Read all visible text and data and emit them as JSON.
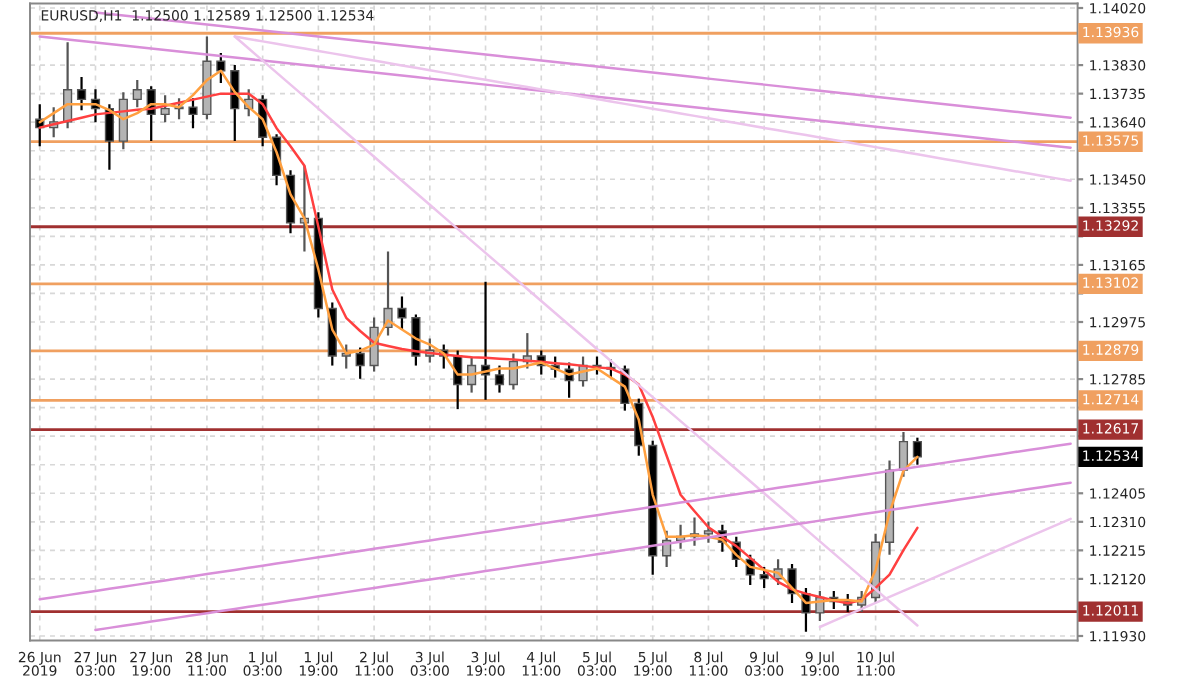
{
  "chart_data": {
    "type": "candlestick",
    "title": "EURUSD,H1  1.12500 1.12589 1.12500 1.12534",
    "categories": [
      "26 Jun 2019",
      null,
      null,
      null,
      "27 Jun 03:00",
      null,
      null,
      null,
      "27 Jun 19:00",
      null,
      null,
      null,
      "28 Jun 11:00",
      null,
      null,
      null,
      "1 Jul 03:00",
      null,
      null,
      null,
      "1 Jul 19:00",
      null,
      null,
      null,
      "2 Jul 11:00",
      null,
      null,
      null,
      "3 Jul 03:00",
      null,
      null,
      null,
      "3 Jul 19:00",
      null,
      null,
      null,
      "4 Jul 11:00",
      null,
      null,
      null,
      "5 Jul 03:00",
      null,
      null,
      null,
      "5 Jul 19:00",
      null,
      null,
      null,
      "8 Jul 11:00",
      null,
      null,
      null,
      "9 Jul 03:00",
      null,
      null,
      null,
      "9 Jul 19:00",
      null,
      null,
      null,
      "10 Jul 11:00",
      null,
      null,
      null,
      null,
      null,
      null,
      null,
      null,
      null,
      null,
      null,
      null,
      null,
      null
    ],
    "ohlc": [
      [
        1.1365,
        1.137,
        1.1356,
        1.13622
      ],
      [
        1.13622,
        1.1369,
        1.1359,
        1.13641
      ],
      [
        1.13641,
        1.13906,
        1.1362,
        1.13748
      ],
      [
        1.13748,
        1.1379,
        1.1368,
        1.13716
      ],
      [
        1.13716,
        1.1375,
        1.1364,
        1.13685
      ],
      [
        1.13685,
        1.137,
        1.13482,
        1.13577
      ],
      [
        1.13577,
        1.1374,
        1.1355,
        1.13716
      ],
      [
        1.13716,
        1.1378,
        1.1369,
        1.13748
      ],
      [
        1.13748,
        1.1376,
        1.13577,
        1.13666
      ],
      [
        1.13666,
        1.1373,
        1.1364,
        1.13685
      ],
      [
        1.13685,
        1.1372,
        1.1365,
        1.1369
      ],
      [
        1.1369,
        1.1372,
        1.1362,
        1.13666
      ],
      [
        1.13666,
        1.13925,
        1.1365,
        1.13843
      ],
      [
        1.13843,
        1.1387,
        1.1377,
        1.13811
      ],
      [
        1.13811,
        1.1383,
        1.13577,
        1.13685
      ],
      [
        1.13685,
        1.1375,
        1.1366,
        1.13716
      ],
      [
        1.13716,
        1.1373,
        1.1356,
        1.1359
      ],
      [
        1.1359,
        1.136,
        1.1343,
        1.13463
      ],
      [
        1.13463,
        1.1348,
        1.1327,
        1.13305
      ],
      [
        1.13305,
        1.13495,
        1.1321,
        1.1332
      ],
      [
        1.1332,
        1.1334,
        1.1299,
        1.1302
      ],
      [
        1.1302,
        1.1304,
        1.1283,
        1.12862
      ],
      [
        1.12862,
        1.129,
        1.1282,
        1.1287
      ],
      [
        1.1287,
        1.1289,
        1.12786,
        1.1283
      ],
      [
        1.1283,
        1.1299,
        1.1281,
        1.12957
      ],
      [
        1.12957,
        1.1321,
        1.1293,
        1.1302
      ],
      [
        1.1302,
        1.1306,
        1.1295,
        1.12989
      ],
      [
        1.12989,
        1.13,
        1.1283,
        1.12862
      ],
      [
        1.12862,
        1.1292,
        1.1284,
        1.12881
      ],
      [
        1.12881,
        1.129,
        1.1282,
        1.12862
      ],
      [
        1.12862,
        1.1288,
        1.12685,
        1.12767
      ],
      [
        1.12767,
        1.1286,
        1.1274,
        1.1283
      ],
      [
        1.1283,
        1.13109,
        1.12716,
        1.12799
      ],
      [
        1.12799,
        1.1283,
        1.1274,
        1.12767
      ],
      [
        1.12767,
        1.1287,
        1.1275,
        1.12843
      ],
      [
        1.12843,
        1.12938,
        1.1282,
        1.12862
      ],
      [
        1.12862,
        1.1288,
        1.128,
        1.1283
      ],
      [
        1.1283,
        1.1286,
        1.1279,
        1.12818
      ],
      [
        1.12818,
        1.1284,
        1.12723,
        1.1278
      ],
      [
        1.1278,
        1.1286,
        1.1276,
        1.1283
      ],
      [
        1.1283,
        1.1286,
        1.128,
        1.12824
      ],
      [
        1.12824,
        1.1285,
        1.1279,
        1.12818
      ],
      [
        1.12818,
        1.1283,
        1.1268,
        1.12704
      ],
      [
        1.12704,
        1.1272,
        1.1253,
        1.12564
      ],
      [
        1.12564,
        1.1258,
        1.12134,
        1.12197
      ],
      [
        1.12197,
        1.1228,
        1.1216,
        1.12248
      ],
      [
        1.12248,
        1.123,
        1.1222,
        1.12261
      ],
      [
        1.12261,
        1.12324,
        1.1223,
        1.1227
      ],
      [
        1.1227,
        1.12311,
        1.1224,
        1.1228
      ],
      [
        1.1228,
        1.123,
        1.1221,
        1.12242
      ],
      [
        1.12242,
        1.1226,
        1.1216,
        1.12185
      ],
      [
        1.12185,
        1.122,
        1.121,
        1.12134
      ],
      [
        1.12134,
        1.1216,
        1.1209,
        1.12121
      ],
      [
        1.12121,
        1.12185,
        1.121,
        1.12153
      ],
      [
        1.12153,
        1.1217,
        1.1204,
        1.12071
      ],
      [
        1.12071,
        1.1209,
        1.11944,
        1.12007
      ],
      [
        1.12007,
        1.1208,
        1.1198,
        1.12058
      ],
      [
        1.12058,
        1.1208,
        1.1202,
        1.12045
      ],
      [
        1.12045,
        1.1207,
        1.1201,
        1.12033
      ],
      [
        1.12033,
        1.1208,
        1.1201,
        1.12058
      ],
      [
        1.12058,
        1.1227,
        1.1204,
        1.12242
      ],
      [
        1.12242,
        1.12514,
        1.122,
        1.12482
      ],
      [
        1.12482,
        1.12609,
        1.1246,
        1.12577
      ],
      [
        1.12577,
        1.1259,
        1.125,
        1.12526
      ],
      null,
      null,
      null,
      null,
      null,
      null,
      null,
      null,
      null,
      null,
      null
    ],
    "colors": [
      "#000000",
      "#b4b4b4",
      "#b4b4b4",
      "#000000",
      "#000000",
      "#000000",
      "#b4b4b4",
      "#b4b4b4",
      "#000000",
      "#b4b4b4",
      "#b4b4b4",
      "#000000",
      "#b4b4b4",
      "#000000",
      "#000000",
      "#b4b4b4",
      "#000000",
      "#000000",
      "#000000",
      "#b4b4b4",
      "#000000",
      "#000000",
      "#b4b4b4",
      "#000000",
      "#b4b4b4",
      "#b4b4b4",
      "#000000",
      "#000000",
      "#b4b4b4",
      "#000000",
      "#000000",
      "#b4b4b4",
      "#000000",
      "#000000",
      "#b4b4b4",
      "#b4b4b4",
      "#000000",
      "#000000",
      "#000000",
      "#b4b4b4",
      "#000000",
      "#000000",
      "#000000",
      "#000000",
      "#000000",
      "#b4b4b4",
      "#b4b4b4",
      "#b4b4b4",
      "#b4b4b4",
      "#000000",
      "#000000",
      "#000000",
      "#000000",
      "#b4b4b4",
      "#000000",
      "#000000",
      "#b4b4b4",
      "#000000",
      "#000000",
      "#b4b4b4",
      "#b4b4b4",
      "#b4b4b4",
      "#b4b4b4",
      "#000000",
      null,
      null,
      null,
      null,
      null,
      null,
      null,
      null,
      null,
      null,
      null
    ],
    "series": [
      {
        "type": "line",
        "color": "#ff4040",
        "values": [
          1.13622,
          1.13633,
          1.13644,
          1.13655,
          1.13666,
          1.13671,
          1.13676,
          1.13681,
          1.13685,
          1.13695,
          1.13705,
          1.13715,
          1.13725,
          1.13735,
          1.13735,
          1.13735,
          1.137,
          1.1362,
          1.1356,
          1.13495,
          1.13292,
          1.13083,
          1.12989,
          1.12945,
          1.12906,
          1.12895,
          1.12885,
          1.12878,
          1.12872,
          1.12867,
          1.12862,
          1.12858,
          1.12856,
          1.12853,
          1.1285,
          1.12846,
          1.12843,
          1.12838,
          1.12834,
          1.12829,
          1.12824,
          1.1282,
          1.128,
          1.12767,
          1.12659,
          1.1253,
          1.124,
          1.12345,
          1.12292,
          1.1226,
          1.12229,
          1.1219,
          1.1215,
          1.1211,
          1.12085,
          1.12071,
          1.1206,
          1.12048,
          1.12039,
          1.1205,
          1.1209,
          1.12134,
          1.12216,
          1.1229,
          null,
          null,
          null,
          null,
          null,
          null,
          null,
          null,
          null,
          null,
          null
        ]
      },
      {
        "type": "line",
        "color": "#ffa040",
        "values": [
          1.1364,
          1.1367,
          1.137,
          1.137,
          1.137,
          1.1368,
          1.1365,
          1.1367,
          1.137,
          1.137,
          1.1369,
          1.1373,
          1.1378,
          1.13811,
          1.1374,
          1.1369,
          1.1365,
          1.1354,
          1.134,
          1.1332,
          1.1315,
          1.1295,
          1.1287,
          1.1288,
          1.129,
          1.1298,
          1.1295,
          1.1292,
          1.129,
          1.1287,
          1.128,
          1.128,
          1.1281,
          1.1282,
          1.1282,
          1.1283,
          1.1284,
          1.1282,
          1.128,
          1.1281,
          1.1282,
          1.1279,
          1.1276,
          1.1265,
          1.124,
          1.1226,
          1.1226,
          1.12265,
          1.1226,
          1.1225,
          1.122,
          1.1216,
          1.1215,
          1.1214,
          1.1209,
          1.1204,
          1.12045,
          1.1205,
          1.1205,
          1.12045,
          1.1215,
          1.1234,
          1.1248,
          1.12526,
          null,
          null,
          null,
          null,
          null,
          null,
          null,
          null,
          null,
          null,
          null
        ]
      },
      {
        "type": "line",
        "color": "#d98fd9",
        "values": [
          null,
          null,
          null,
          null,
          1.14005,
          1.14,
          1.13995,
          1.1399,
          1.13985,
          1.1398,
          1.13975,
          1.1397,
          1.13965,
          1.1396,
          1.13955,
          1.1395,
          1.13945,
          1.1394,
          1.13935,
          1.1393,
          1.13925,
          1.1392,
          1.13915,
          1.1391,
          1.13905,
          1.139,
          1.13895,
          1.1389,
          1.13885,
          1.1388,
          1.13875,
          1.1387,
          1.13865,
          1.1386,
          1.13855,
          1.1385,
          1.13845,
          1.1384,
          1.13835,
          1.1383,
          1.13825,
          1.1382,
          1.13815,
          1.1381,
          1.13805,
          1.138,
          1.13795,
          1.1379,
          1.13785,
          1.1378,
          1.13775,
          1.1377,
          1.13765,
          1.1376,
          1.13755,
          1.1375,
          1.13745,
          1.1374,
          1.13735,
          1.1373,
          1.13725,
          1.1372,
          1.13715,
          1.1371,
          1.13705,
          1.137,
          1.13695,
          1.1369,
          1.13685,
          1.1368,
          1.13675,
          1.1367,
          1.13665,
          1.1366,
          1.13655
        ]
      },
      {
        "type": "line",
        "color": "#d98fd9",
        "values": [
          1.13925,
          1.1392,
          1.13915,
          1.1391,
          1.13905,
          1.139,
          1.13895,
          1.1389,
          1.13885,
          1.1388,
          1.13875,
          1.1387,
          1.13865,
          1.1386,
          1.13855,
          1.1385,
          1.13845,
          1.1384,
          1.13835,
          1.1383,
          1.13825,
          1.1382,
          1.13815,
          1.1381,
          1.13805,
          1.138,
          1.13795,
          1.1379,
          1.13785,
          1.1378,
          1.13775,
          1.1377,
          1.13765,
          1.1376,
          1.13755,
          1.1375,
          1.13745,
          1.1374,
          1.13735,
          1.1373,
          1.13725,
          1.1372,
          1.13715,
          1.1371,
          1.13705,
          1.137,
          1.13695,
          1.1369,
          1.13685,
          1.1368,
          1.13675,
          1.1367,
          1.13665,
          1.1366,
          1.13655,
          1.1365,
          1.13645,
          1.1364,
          1.13635,
          1.1363,
          1.13625,
          1.1362,
          1.13615,
          1.1361,
          1.13605,
          1.136,
          1.13595,
          1.1359,
          1.13585,
          1.1358,
          1.13575,
          1.1357,
          1.13565,
          1.1356,
          1.13555
        ]
      },
      {
        "type": "line",
        "color": "#ecc4ec",
        "values": [
          null,
          null,
          null,
          null,
          null,
          null,
          null,
          null,
          null,
          null,
          null,
          null,
          null,
          null,
          1.13925,
          1.13917,
          1.13909,
          1.13901,
          1.13893,
          1.13885,
          1.13877,
          1.13869,
          1.13861,
          1.13853,
          1.13845,
          1.13837,
          1.13829,
          1.13821,
          1.13813,
          1.13805,
          1.13797,
          1.13789,
          1.13781,
          1.13773,
          1.13765,
          1.13757,
          1.13749,
          1.13741,
          1.13733,
          1.13725,
          1.13717,
          1.13709,
          1.13701,
          1.13693,
          1.13685,
          1.13677,
          1.13669,
          1.13661,
          1.13653,
          1.13645,
          1.13637,
          1.13629,
          1.13621,
          1.13613,
          1.13605,
          1.13597,
          1.13589,
          1.13581,
          1.13573,
          1.13565,
          1.13557,
          1.13549,
          1.13541,
          1.13533,
          1.13525,
          1.13517,
          1.13509,
          1.13501,
          1.13493,
          1.13485,
          1.13477,
          1.13469,
          1.13461,
          1.13453,
          1.13445
        ]
      },
      {
        "type": "line",
        "color": "#ecc4ec",
        "values": [
          null,
          null,
          null,
          null,
          null,
          null,
          null,
          null,
          null,
          null,
          null,
          null,
          null,
          null,
          1.13925,
          1.13885,
          1.13845,
          1.13805,
          1.13765,
          1.13725,
          1.13685,
          1.13645,
          1.13605,
          1.13565,
          1.13525,
          1.13485,
          1.13445,
          1.13405,
          1.13365,
          1.13325,
          1.13285,
          1.13245,
          1.13205,
          1.13165,
          1.13125,
          1.13085,
          1.13045,
          1.13005,
          1.12965,
          1.12925,
          1.12885,
          1.12845,
          1.12805,
          1.12765,
          1.12725,
          1.12685,
          1.12645,
          1.12605,
          1.12565,
          1.12525,
          1.12485,
          1.12445,
          1.12405,
          1.12365,
          1.12325,
          1.12285,
          1.12245,
          1.12205,
          1.12165,
          1.12125,
          1.12085,
          1.12045,
          1.12005,
          1.11965,
          null,
          null,
          null,
          null,
          null,
          null,
          null,
          null,
          null,
          null,
          null
        ]
      },
      {
        "type": "line",
        "color": "#d98fd9",
        "values": [
          1.12052,
          1.12059,
          1.12066,
          1.12073,
          1.1208,
          1.12087,
          1.12094,
          1.12101,
          1.12108,
          1.12115,
          1.12122,
          1.12129,
          1.12136,
          1.12143,
          1.1215,
          1.12157,
          1.12164,
          1.12171,
          1.12178,
          1.12185,
          1.12192,
          1.12199,
          1.12206,
          1.12213,
          1.1222,
          1.12227,
          1.12234,
          1.12241,
          1.12248,
          1.12255,
          1.12262,
          1.12269,
          1.12276,
          1.12283,
          1.1229,
          1.12297,
          1.12304,
          1.12311,
          1.12318,
          1.12325,
          1.12332,
          1.12339,
          1.12346,
          1.12353,
          1.1236,
          1.12367,
          1.12374,
          1.12381,
          1.12388,
          1.12395,
          1.12402,
          1.12409,
          1.12416,
          1.12423,
          1.1243,
          1.12437,
          1.12444,
          1.12451,
          1.12458,
          1.12465,
          1.12472,
          1.12479,
          1.12486,
          1.12493,
          1.125,
          1.12507,
          1.12514,
          1.12521,
          1.12528,
          1.12535,
          1.12542,
          1.12549,
          1.12556,
          1.12563,
          1.1257
        ]
      },
      {
        "type": "line",
        "color": "#d98fd9",
        "values": [
          null,
          null,
          null,
          null,
          1.1195,
          1.11957,
          1.11964,
          1.11971,
          1.11978,
          1.11985,
          1.11992,
          1.11999,
          1.12006,
          1.12013,
          1.1202,
          1.12027,
          1.12034,
          1.12041,
          1.12048,
          1.12055,
          1.12062,
          1.12069,
          1.12076,
          1.12083,
          1.1209,
          1.12097,
          1.12104,
          1.12111,
          1.12118,
          1.12125,
          1.12132,
          1.12139,
          1.12146,
          1.12153,
          1.1216,
          1.12167,
          1.12174,
          1.12181,
          1.12188,
          1.12195,
          1.12202,
          1.12209,
          1.12216,
          1.12223,
          1.1223,
          1.12237,
          1.12244,
          1.12251,
          1.12258,
          1.12265,
          1.12272,
          1.12279,
          1.12286,
          1.12293,
          1.123,
          1.12307,
          1.12314,
          1.12321,
          1.12328,
          1.12335,
          1.12342,
          1.12349,
          1.12356,
          1.12363,
          1.1237,
          1.12377,
          1.12384,
          1.12391,
          1.12398,
          1.12405,
          1.12412,
          1.12419,
          1.12426,
          1.12433,
          1.1244
        ]
      },
      {
        "type": "line",
        "color": "#ecc4ec",
        "values": [
          null,
          null,
          null,
          null,
          null,
          null,
          null,
          null,
          null,
          null,
          null,
          null,
          null,
          null,
          null,
          null,
          null,
          null,
          null,
          null,
          null,
          null,
          null,
          null,
          null,
          null,
          null,
          null,
          null,
          null,
          null,
          null,
          null,
          null,
          null,
          null,
          null,
          null,
          null,
          null,
          null,
          null,
          null,
          null,
          null,
          null,
          null,
          null,
          null,
          null,
          null,
          null,
          null,
          null,
          null,
          null,
          1.1196,
          1.1198,
          1.12,
          1.1202,
          1.1204,
          1.1206,
          1.1208,
          1.121,
          1.1212,
          1.1214,
          1.1216,
          1.1218,
          1.122,
          1.1222,
          1.1224,
          1.1226,
          1.1228,
          1.123,
          1.1232
        ]
      }
    ],
    "ylim": [
      1.11915,
      1.14035
    ],
    "yticks": [
      {
        "value": 1.1402,
        "label": "1.14020"
      },
      {
        "value": 1.1383,
        "label": "1.13830"
      },
      {
        "value": 1.13735,
        "label": "1.13735"
      },
      {
        "value": 1.1364,
        "label": "1.13640"
      },
      {
        "value": 1.13545,
        "label": null
      },
      {
        "value": 1.1345,
        "label": "1.13450"
      },
      {
        "value": 1.13355,
        "label": "1.13355"
      },
      {
        "value": 1.1326,
        "label": null
      },
      {
        "value": 1.13165,
        "label": "1.13165"
      },
      {
        "value": 1.1307,
        "label": null
      },
      {
        "value": 1.12975,
        "label": "1.12975"
      },
      {
        "value": 1.12785,
        "label": "1.12785"
      },
      {
        "value": 1.1269,
        "label": null
      },
      {
        "value": 1.12595,
        "label": null
      },
      {
        "value": 1.125,
        "label": null
      },
      {
        "value": 1.12405,
        "label": "1.12405"
      },
      {
        "value": 1.1231,
        "label": "1.12310"
      },
      {
        "value": 1.12215,
        "label": "1.12215"
      },
      {
        "value": 1.1212,
        "label": "1.12120"
      },
      {
        "value": 1.1193,
        "label": "1.11930"
      }
    ],
    "ref_lines": [
      {
        "axis": "y",
        "value": 1.13936,
        "label": "1.13936",
        "color": "#f0a060"
      },
      {
        "axis": "y",
        "value": 1.13575,
        "label": "1.13575",
        "color": "#f0a060"
      },
      {
        "axis": "y",
        "value": 1.13292,
        "label": "1.13292",
        "color": "#a03030"
      },
      {
        "axis": "y",
        "value": 1.13102,
        "label": "1.13102",
        "color": "#f0a060"
      },
      {
        "axis": "y",
        "value": 1.12879,
        "label": "1.12879",
        "color": "#f0a060"
      },
      {
        "axis": "y",
        "value": 1.12714,
        "label": "1.12714",
        "color": "#f0a060"
      },
      {
        "axis": "y",
        "value": 1.12617,
        "label": "1.12617",
        "color": "#a03030"
      },
      {
        "axis": "y",
        "value": 1.12011,
        "label": "1.12011",
        "color": "#a03030"
      }
    ],
    "annotations": [
      "1.12534"
    ],
    "grid": true,
    "legend": false
  }
}
